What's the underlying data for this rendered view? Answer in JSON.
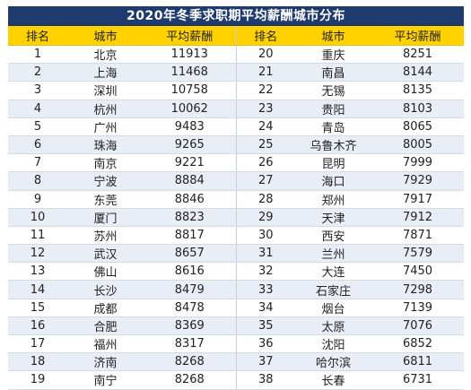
{
  "title": "2020年冬季求职期平均薪酬城市分布",
  "headers": {
    "rank": "排名",
    "city": "城市",
    "salary": "平均薪酬"
  },
  "rows": [
    {
      "l": {
        "rank": "1",
        "city": "北京",
        "salary": "11913"
      },
      "r": {
        "rank": "20",
        "city": "重庆",
        "salary": "8251"
      }
    },
    {
      "l": {
        "rank": "2",
        "city": "上海",
        "salary": "11468"
      },
      "r": {
        "rank": "21",
        "city": "南昌",
        "salary": "8144"
      }
    },
    {
      "l": {
        "rank": "3",
        "city": "深圳",
        "salary": "10758"
      },
      "r": {
        "rank": "22",
        "city": "无锡",
        "salary": "8135"
      }
    },
    {
      "l": {
        "rank": "4",
        "city": "杭州",
        "salary": "10062"
      },
      "r": {
        "rank": "23",
        "city": "贵阳",
        "salary": "8103"
      }
    },
    {
      "l": {
        "rank": "5",
        "city": "广州",
        "salary": "9483"
      },
      "r": {
        "rank": "24",
        "city": "青岛",
        "salary": "8065"
      }
    },
    {
      "l": {
        "rank": "6",
        "city": "珠海",
        "salary": "9265"
      },
      "r": {
        "rank": "25",
        "city": "乌鲁木齐",
        "salary": "8005"
      }
    },
    {
      "l": {
        "rank": "7",
        "city": "南京",
        "salary": "9221"
      },
      "r": {
        "rank": "26",
        "city": "昆明",
        "salary": "7999"
      }
    },
    {
      "l": {
        "rank": "8",
        "city": "宁波",
        "salary": "8884"
      },
      "r": {
        "rank": "27",
        "city": "海口",
        "salary": "7929"
      }
    },
    {
      "l": {
        "rank": "9",
        "city": "东莞",
        "salary": "8846"
      },
      "r": {
        "rank": "28",
        "city": "郑州",
        "salary": "7917"
      }
    },
    {
      "l": {
        "rank": "10",
        "city": "厦门",
        "salary": "8823"
      },
      "r": {
        "rank": "29",
        "city": "天津",
        "salary": "7912"
      }
    },
    {
      "l": {
        "rank": "11",
        "city": "苏州",
        "salary": "8817"
      },
      "r": {
        "rank": "30",
        "city": "西安",
        "salary": "7871"
      }
    },
    {
      "l": {
        "rank": "12",
        "city": "武汉",
        "salary": "8657"
      },
      "r": {
        "rank": "31",
        "city": "兰州",
        "salary": "7579"
      }
    },
    {
      "l": {
        "rank": "13",
        "city": "佛山",
        "salary": "8616"
      },
      "r": {
        "rank": "32",
        "city": "大连",
        "salary": "7450"
      }
    },
    {
      "l": {
        "rank": "14",
        "city": "长沙",
        "salary": "8479"
      },
      "r": {
        "rank": "33",
        "city": "石家庄",
        "salary": "7298"
      }
    },
    {
      "l": {
        "rank": "15",
        "city": "成都",
        "salary": "8478"
      },
      "r": {
        "rank": "34",
        "city": "烟台",
        "salary": "7139"
      }
    },
    {
      "l": {
        "rank": "16",
        "city": "合肥",
        "salary": "8369"
      },
      "r": {
        "rank": "35",
        "city": "太原",
        "salary": "7076"
      }
    },
    {
      "l": {
        "rank": "17",
        "city": "福州",
        "salary": "8317"
      },
      "r": {
        "rank": "36",
        "city": "沈阳",
        "salary": "6852"
      }
    },
    {
      "l": {
        "rank": "18",
        "city": "济南",
        "salary": "8268"
      },
      "r": {
        "rank": "37",
        "city": "哈尔滨",
        "salary": "6811"
      }
    },
    {
      "l": {
        "rank": "19",
        "city": "南宁",
        "salary": "8268"
      },
      "r": {
        "rank": "38",
        "city": "长春",
        "salary": "6731"
      }
    }
  ],
  "colors": {
    "title_bg": "#1f3a6e",
    "header_bg": "#ffd200",
    "row_alt": "#e8edf6"
  }
}
